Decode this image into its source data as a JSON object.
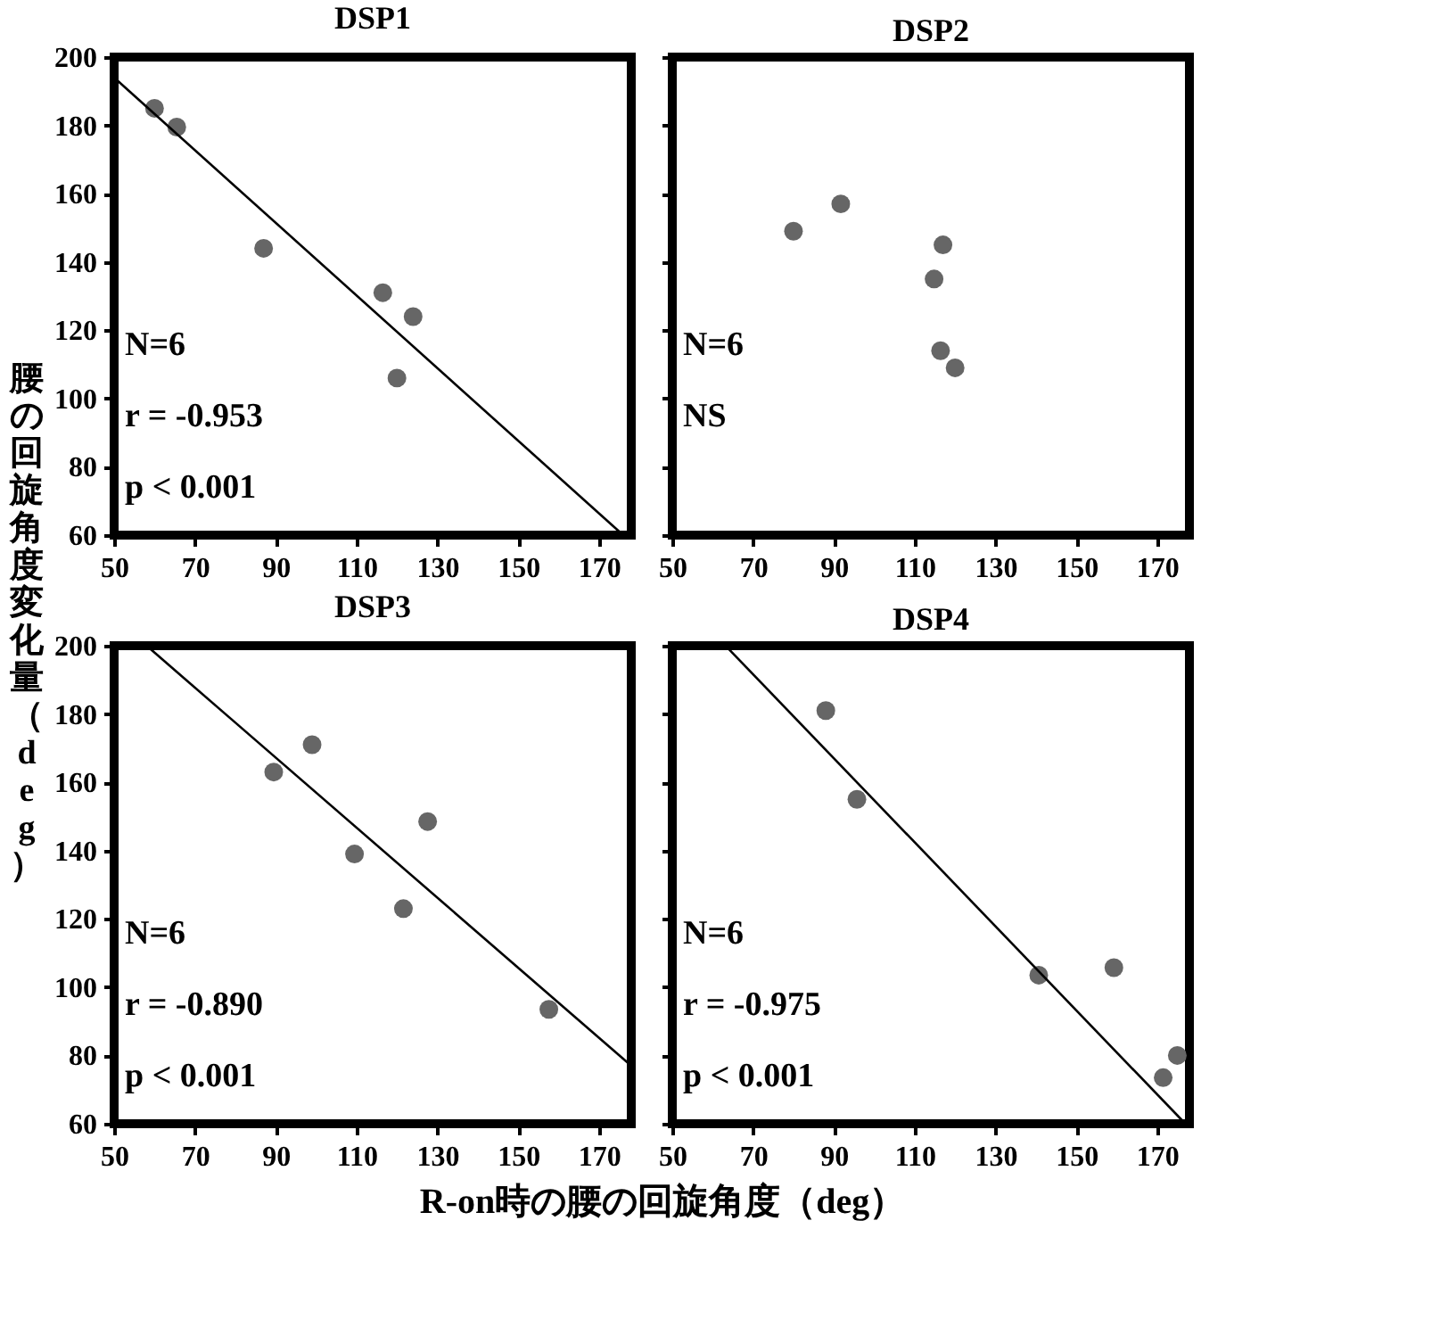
{
  "chart_data": [
    {
      "type": "scatter",
      "title": "DSP1",
      "ylabel": "腰の回旋角度変化量（deg）",
      "xlim": [
        50,
        178
      ],
      "xticks": [
        50,
        70,
        90,
        110,
        130,
        150,
        170
      ],
      "ylim": [
        60,
        200
      ],
      "yticks": [
        60,
        80,
        100,
        120,
        140,
        160,
        180,
        200
      ],
      "annotations": [
        "N=6",
        "r = -0.953",
        "p < 0.001"
      ],
      "series": [
        {
          "marker": "circle",
          "color": "#666666",
          "x": [
            60,
            65.5,
            87,
            116.5,
            124,
            120
          ],
          "values": [
            185,
            179.5,
            144,
            131,
            124,
            106
          ]
        },
        {
          "type": "line",
          "color": "#000000",
          "x": [
            50,
            176
          ],
          "values": [
            194,
            60
          ]
        }
      ]
    },
    {
      "type": "scatter",
      "title": "DSP2",
      "xlim": [
        50,
        178
      ],
      "xticks": [
        50,
        70,
        90,
        110,
        130,
        150,
        170
      ],
      "ylim": [
        60,
        200
      ],
      "yticks": [
        60,
        80,
        100,
        120,
        140,
        160,
        180,
        200
      ],
      "tick_labels": "x",
      "annotations": [
        "N=6",
        "NS"
      ],
      "series": [
        {
          "marker": "circle",
          "color": "#666666",
          "x": [
            80,
            91.7,
            117,
            114.8,
            116.4,
            120
          ],
          "values": [
            149,
            157,
            145,
            135,
            114,
            109
          ]
        }
      ]
    },
    {
      "type": "scatter",
      "title": "DSP3",
      "xlabel": "R-on時の腰の回旋角度（deg）",
      "xlim": [
        50,
        178
      ],
      "xticks": [
        50,
        70,
        90,
        110,
        130,
        150,
        170
      ],
      "ylim": [
        60,
        200
      ],
      "yticks": [
        60,
        80,
        100,
        120,
        140,
        160,
        180,
        200
      ],
      "annotations": [
        "N=6",
        "r = -0.890",
        "p < 0.001"
      ],
      "series": [
        {
          "marker": "circle",
          "color": "#666666",
          "x": [
            89.5,
            99,
            109.5,
            121.6,
            127.6,
            157.6
          ],
          "values": [
            163,
            171,
            139,
            123,
            148.5,
            93.5
          ]
        },
        {
          "type": "line",
          "color": "#000000",
          "x": [
            59,
            178
          ],
          "values": [
            199,
            77
          ]
        }
      ]
    },
    {
      "type": "scatter",
      "title": "DSP4",
      "xlim": [
        50,
        178
      ],
      "xticks": [
        50,
        70,
        90,
        110,
        130,
        150,
        170
      ],
      "ylim": [
        60,
        200
      ],
      "yticks": [
        60,
        80,
        100,
        120,
        140,
        160,
        180,
        200
      ],
      "tick_labels": "x",
      "annotations": [
        "N=6",
        "r = -0.975",
        "p < 0.001"
      ],
      "series": [
        {
          "marker": "circle",
          "color": "#666666",
          "x": [
            88,
            95.7,
            140.7,
            159.3,
            175,
            171.5
          ],
          "values": [
            181,
            155,
            103.5,
            105.7,
            80,
            73.5
          ]
        },
        {
          "type": "line",
          "color": "#000000",
          "x": [
            64,
            177
          ],
          "values": [
            199,
            60
          ]
        }
      ]
    }
  ]
}
